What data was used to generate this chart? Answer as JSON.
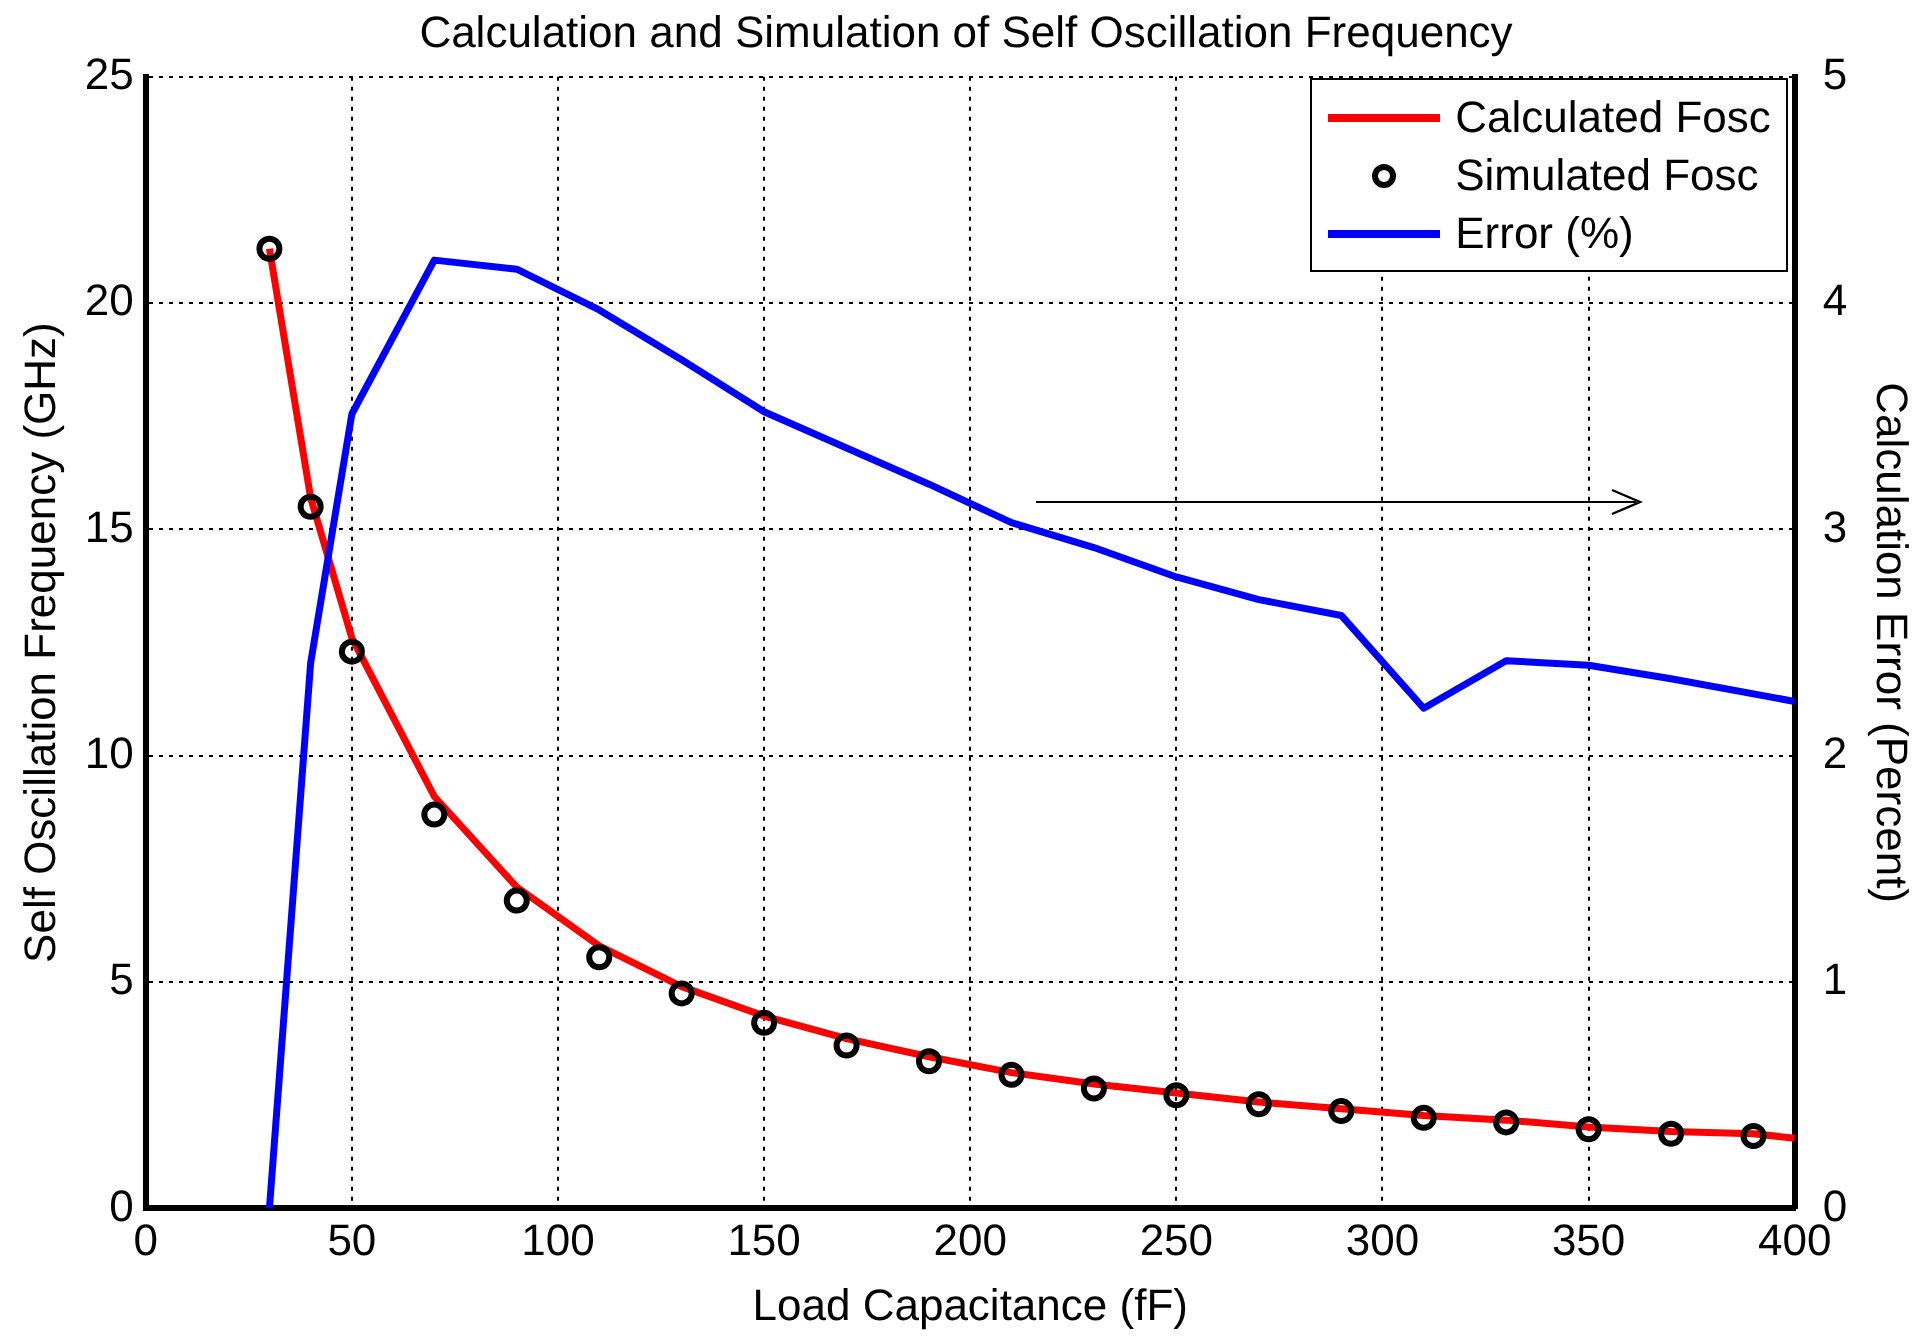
{
  "chart_data": {
    "type": "line",
    "title": "Calculation and Simulation of Self Oscillation Frequency",
    "xlabel": "Load Capacitance (fF)",
    "ylabel": "Self Oscillation Frequency (GHz)",
    "y2label": "Calculation Error (Percent)",
    "xlim": [
      0,
      400
    ],
    "xticks": [
      0,
      50,
      100,
      150,
      200,
      250,
      300,
      350,
      400
    ],
    "ylim": [
      0,
      25
    ],
    "yticks": [
      0,
      5,
      10,
      15,
      20,
      25
    ],
    "y2lim": [
      0,
      5
    ],
    "y2ticks": [
      0,
      1,
      2,
      3,
      4,
      5
    ],
    "grid": true,
    "legend": "top right",
    "series": [
      {
        "name": "Calculated Fosc",
        "type": "line",
        "color": "#ff0000",
        "marker": "none",
        "x": [
          30,
          40,
          50,
          70,
          90,
          110,
          130,
          150,
          170,
          190,
          210,
          230,
          250,
          270,
          290,
          310,
          330,
          350,
          370,
          390,
          400
        ],
        "values": [
          21.2,
          15.7,
          12.6,
          9.1,
          7.1,
          5.8,
          4.9,
          4.25,
          3.75,
          3.35,
          3.0,
          2.75,
          2.55,
          2.35,
          2.2,
          2.05,
          1.95,
          1.8,
          1.7,
          1.65,
          1.55
        ]
      },
      {
        "name": "Simulated Fosc",
        "type": "scatter",
        "color": "#000000",
        "marker": "circle",
        "x": [
          30,
          40,
          50,
          70,
          90,
          110,
          130,
          150,
          170,
          190,
          210,
          230,
          250,
          270,
          290,
          310,
          330,
          350,
          370,
          390
        ],
        "values": [
          21.2,
          15.5,
          12.3,
          8.7,
          6.8,
          5.55,
          4.75,
          4.1,
          3.6,
          3.25,
          2.95,
          2.65,
          2.5,
          2.3,
          2.15,
          2.0,
          1.9,
          1.75,
          1.65,
          1.6
        ]
      },
      {
        "name": "Error (%)",
        "type": "line",
        "color": "#0000ff",
        "marker": "none",
        "axis": "y2",
        "x": [
          30,
          40,
          50,
          70,
          90,
          110,
          130,
          150,
          170,
          190,
          210,
          230,
          250,
          270,
          290,
          310,
          330,
          350,
          370,
          400
        ],
        "values": [
          0,
          2.41,
          3.51,
          4.19,
          4.15,
          3.97,
          3.75,
          3.52,
          3.36,
          3.2,
          3.03,
          2.92,
          2.79,
          2.69,
          2.62,
          2.21,
          2.42,
          2.4,
          2.34,
          2.24
        ]
      }
    ]
  }
}
